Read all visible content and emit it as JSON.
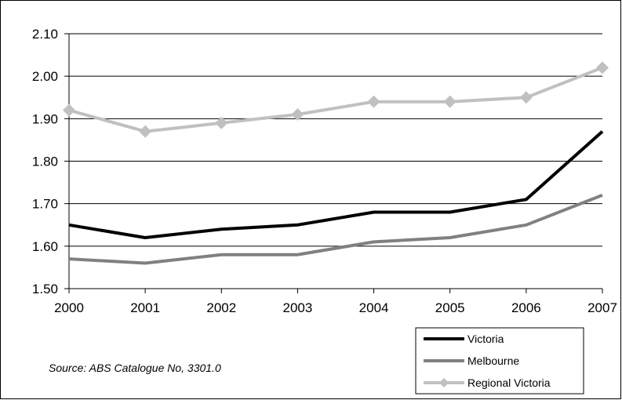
{
  "chart_data": {
    "type": "line",
    "categories": [
      "2000",
      "2001",
      "2002",
      "2003",
      "2004",
      "2005",
      "2006",
      "2007"
    ],
    "ylim": [
      1.5,
      2.1
    ],
    "yticks": [
      "1.50",
      "1.60",
      "1.70",
      "1.80",
      "1.90",
      "2.00",
      "2.10"
    ],
    "grid": true,
    "legend_position": "bottom-right",
    "series": [
      {
        "name": "Victoria",
        "values": [
          1.65,
          1.62,
          1.64,
          1.65,
          1.68,
          1.68,
          1.71,
          1.87
        ],
        "color": "#000000",
        "marker": "none"
      },
      {
        "name": "Melbourne",
        "values": [
          1.57,
          1.56,
          1.58,
          1.58,
          1.61,
          1.62,
          1.65,
          1.72
        ],
        "color": "#808080",
        "marker": "none"
      },
      {
        "name": "Regional Victoria",
        "values": [
          1.92,
          1.87,
          1.89,
          1.91,
          1.94,
          1.94,
          1.95,
          2.02
        ],
        "color": "#c0c0c0",
        "marker": "diamond"
      }
    ],
    "source_note": "Source: ABS Catalogue No, 3301.0"
  }
}
